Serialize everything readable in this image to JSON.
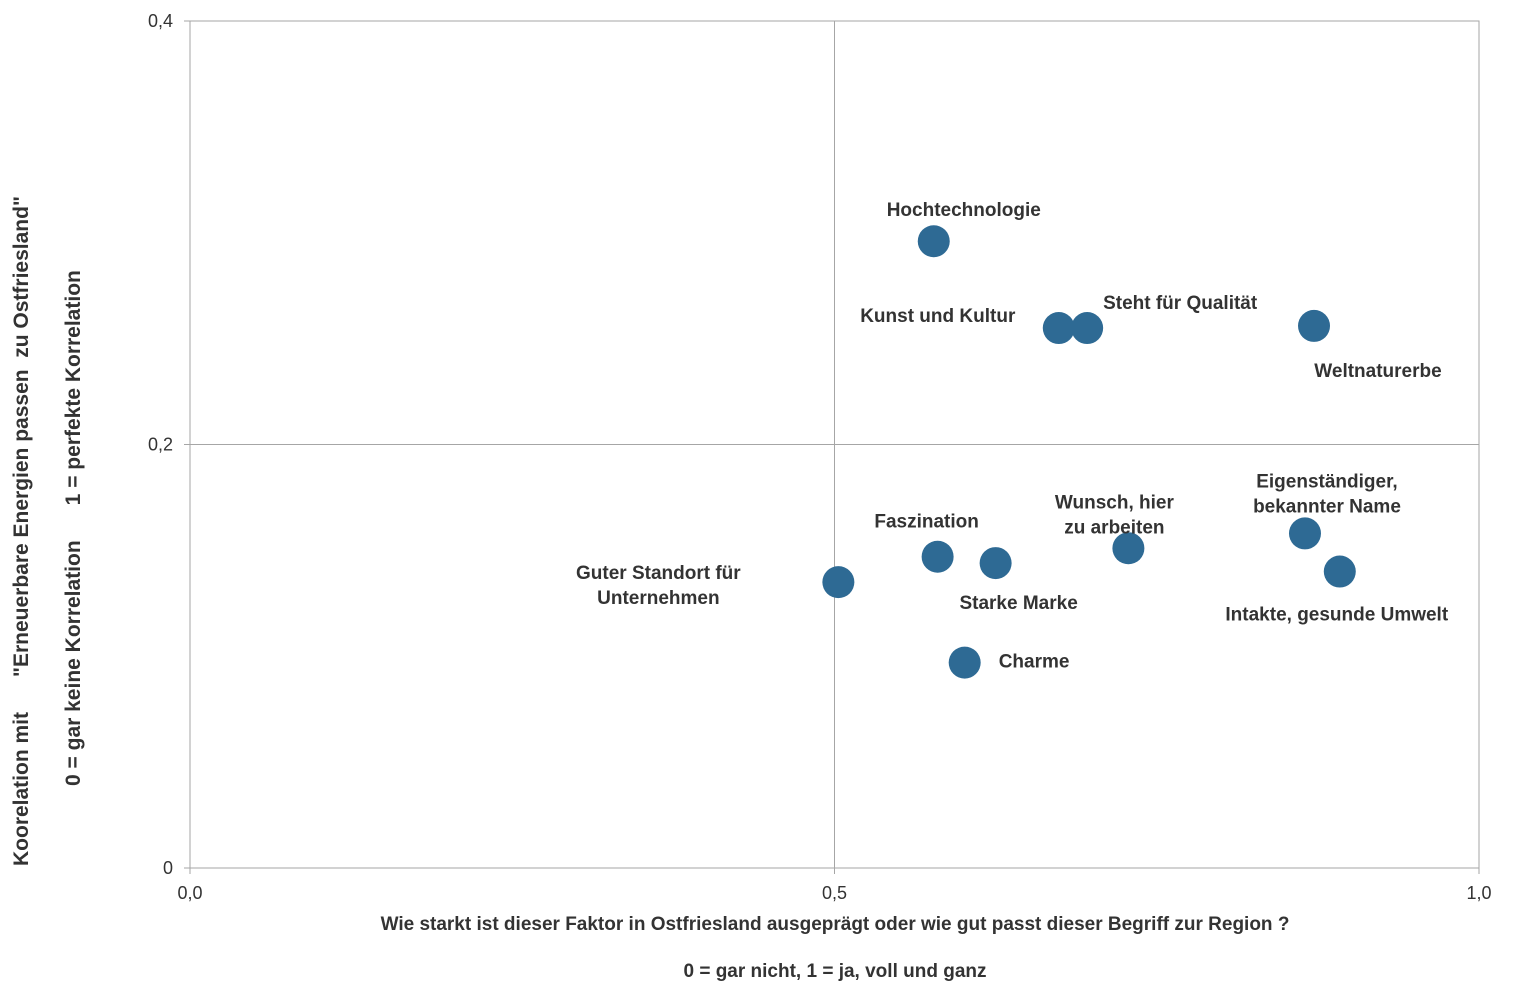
{
  "chart_data": {
    "type": "scatter",
    "xlabel": "Wie starkt ist dieser Faktor in Ostfriesland ausgeprägt oder wie gut passt dieser Begriff zur Region ?",
    "xlabel_note": "0 = gar nicht, 1 = ja, voll und ganz",
    "ylabel_lines": [
      "Koorelation mit      \"Erneuerbare Energien passen  zu Ostfriesland\"",
      "0 = gar keine Korrelation      1 = perfekte Korrelation"
    ],
    "xlim": [
      0,
      1
    ],
    "ylim": [
      0,
      0.4
    ],
    "x_ticks": [
      {
        "value": 0,
        "label": "0,0"
      },
      {
        "value": 0.5,
        "label": "0,5"
      },
      {
        "value": 1,
        "label": "1,0"
      }
    ],
    "y_ticks": [
      {
        "value": 0,
        "label": "0"
      },
      {
        "value": 0.2,
        "label": "0,2"
      },
      {
        "value": 0.4,
        "label": "0,4"
      }
    ],
    "quadrant_lines": {
      "x": 0.5,
      "y": 0.2
    },
    "marker_color": "#2e6a94",
    "points": [
      {
        "label": "Hochtechnologie",
        "x": 0.577,
        "y": 0.296
      },
      {
        "label": "Kunst und Kultur",
        "x": 0.674,
        "y": 0.255
      },
      {
        "label": "Steht für Qualität",
        "x": 0.696,
        "y": 0.255
      },
      {
        "label": "Weltnaturerbe",
        "x": 0.872,
        "y": 0.256
      },
      {
        "label": "Eigenständiger, bekannter Name",
        "x": 0.865,
        "y": 0.158
      },
      {
        "label": "Intakte, gesunde Umwelt",
        "x": 0.892,
        "y": 0.14
      },
      {
        "label": "Wunsch, hier zu arbeiten",
        "x": 0.728,
        "y": 0.151
      },
      {
        "label": "Faszination",
        "x": 0.58,
        "y": 0.147
      },
      {
        "label": "Starke Marke",
        "x": 0.625,
        "y": 0.144
      },
      {
        "label": "Guter Standort für Unternehmen",
        "x": 0.503,
        "y": 0.135
      },
      {
        "label": "Charme",
        "x": 0.601,
        "y": 0.097
      }
    ]
  }
}
